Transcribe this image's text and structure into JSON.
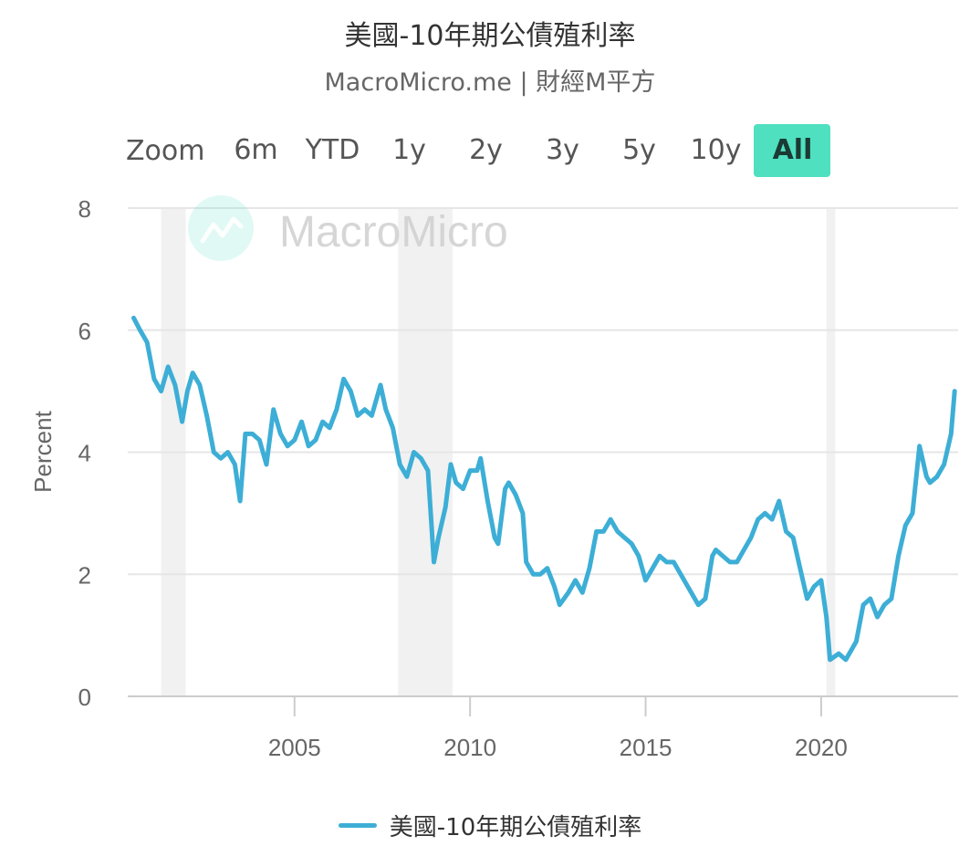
{
  "header": {
    "title": "美國-10年期公債殖利率",
    "subtitle": "MacroMicro.me | 財經M平方"
  },
  "zoom": {
    "label": "Zoom",
    "buttons": [
      "6m",
      "YTD",
      "1y",
      "2y",
      "3y",
      "5y",
      "10y",
      "All"
    ],
    "active": "All"
  },
  "watermark": {
    "text": "MacroMicro",
    "icon": "macromicro-logo-icon"
  },
  "legend": {
    "label": "美國-10年期公債殖利率"
  },
  "colors": {
    "series": "#3daed6",
    "grid": "#e6e6e6",
    "recession_band": "#f1f1f1",
    "zoom_active": "#4fe0c0"
  },
  "chart_data": {
    "type": "line",
    "title": "美國-10年期公債殖利率",
    "ylabel": "Percent",
    "xlabel": "",
    "xlim": [
      2000.25,
      2023.9
    ],
    "ylim": [
      0,
      8
    ],
    "y_ticks": [
      0,
      2,
      4,
      6,
      8
    ],
    "x_ticks": [
      2005,
      2010,
      2015,
      2020
    ],
    "grid": true,
    "legend_position": "bottom-center",
    "recessions": [
      [
        2001.2,
        2001.9
      ],
      [
        2007.95,
        2009.5
      ],
      [
        2020.15,
        2020.4
      ]
    ],
    "series": [
      {
        "name": "美國-10年期公債殖利率",
        "x": [
          2000.42,
          2000.6,
          2000.8,
          2001.0,
          2001.2,
          2001.4,
          2001.6,
          2001.8,
          2001.95,
          2002.1,
          2002.3,
          2002.5,
          2002.7,
          2002.9,
          2003.1,
          2003.3,
          2003.45,
          2003.6,
          2003.8,
          2004.0,
          2004.2,
          2004.4,
          2004.6,
          2004.8,
          2005.0,
          2005.2,
          2005.4,
          2005.6,
          2005.8,
          2006.0,
          2006.2,
          2006.4,
          2006.6,
          2006.8,
          2007.0,
          2007.2,
          2007.45,
          2007.6,
          2007.8,
          2008.0,
          2008.2,
          2008.4,
          2008.6,
          2008.8,
          2008.97,
          2009.1,
          2009.3,
          2009.45,
          2009.6,
          2009.8,
          2010.0,
          2010.2,
          2010.3,
          2010.5,
          2010.7,
          2010.8,
          2011.0,
          2011.1,
          2011.3,
          2011.5,
          2011.6,
          2011.8,
          2012.0,
          2012.2,
          2012.4,
          2012.55,
          2012.8,
          2013.0,
          2013.2,
          2013.4,
          2013.6,
          2013.8,
          2014.0,
          2014.2,
          2014.4,
          2014.6,
          2014.8,
          2015.0,
          2015.2,
          2015.4,
          2015.6,
          2015.8,
          2016.0,
          2016.2,
          2016.5,
          2016.7,
          2016.9,
          2017.0,
          2017.2,
          2017.4,
          2017.6,
          2017.8,
          2018.0,
          2018.2,
          2018.4,
          2018.6,
          2018.8,
          2019.0,
          2019.2,
          2019.4,
          2019.6,
          2019.8,
          2020.0,
          2020.15,
          2020.25,
          2020.5,
          2020.7,
          2020.9,
          2021.0,
          2021.2,
          2021.4,
          2021.6,
          2021.8,
          2022.0,
          2022.2,
          2022.4,
          2022.6,
          2022.8,
          2023.0,
          2023.1,
          2023.3,
          2023.5,
          2023.7,
          2023.8
        ],
        "y": [
          6.2,
          6.0,
          5.8,
          5.2,
          5.0,
          5.4,
          5.1,
          4.5,
          5.0,
          5.3,
          5.1,
          4.6,
          4.0,
          3.9,
          4.0,
          3.8,
          3.2,
          4.3,
          4.3,
          4.2,
          3.8,
          4.7,
          4.3,
          4.1,
          4.2,
          4.5,
          4.1,
          4.2,
          4.5,
          4.4,
          4.7,
          5.2,
          5.0,
          4.6,
          4.7,
          4.6,
          5.1,
          4.7,
          4.4,
          3.8,
          3.6,
          4.0,
          3.9,
          3.7,
          2.2,
          2.6,
          3.1,
          3.8,
          3.5,
          3.4,
          3.7,
          3.7,
          3.9,
          3.2,
          2.6,
          2.5,
          3.4,
          3.5,
          3.3,
          3.0,
          2.2,
          2.0,
          2.0,
          2.1,
          1.8,
          1.5,
          1.7,
          1.9,
          1.7,
          2.1,
          2.7,
          2.7,
          2.9,
          2.7,
          2.6,
          2.5,
          2.3,
          1.9,
          2.1,
          2.3,
          2.2,
          2.2,
          2.0,
          1.8,
          1.5,
          1.6,
          2.3,
          2.4,
          2.3,
          2.2,
          2.2,
          2.4,
          2.6,
          2.9,
          3.0,
          2.9,
          3.2,
          2.7,
          2.6,
          2.1,
          1.6,
          1.8,
          1.9,
          1.3,
          0.6,
          0.7,
          0.6,
          0.8,
          0.9,
          1.5,
          1.6,
          1.3,
          1.5,
          1.6,
          2.3,
          2.8,
          3.0,
          4.1,
          3.6,
          3.5,
          3.6,
          3.8,
          4.3,
          5.0
        ]
      }
    ]
  }
}
